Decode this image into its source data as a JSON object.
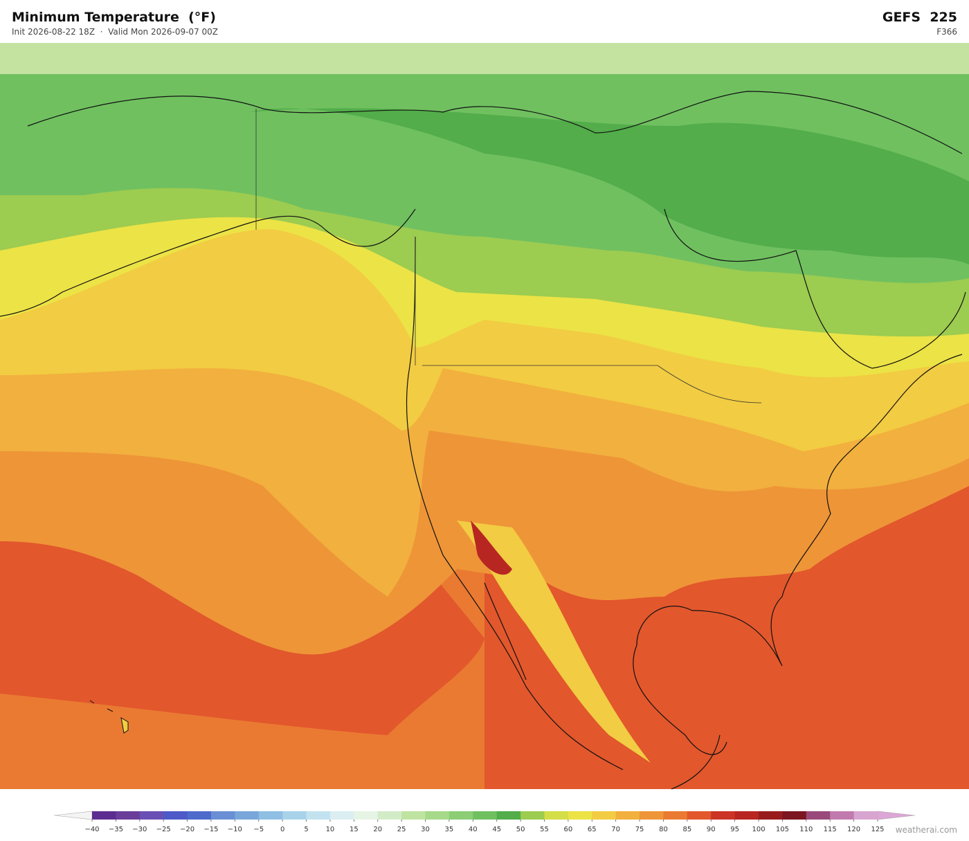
{
  "header": {
    "title": "Minimum Temperature  (°F)",
    "subtitle": "Init 2026-08-22 18Z  ·  Valid Mon 2026-09-07 00Z",
    "model": "GEFS  225",
    "forecast_hour": "F366"
  },
  "colorbar": {
    "ticks": [
      {
        "value": -40,
        "label": "−40"
      },
      {
        "value": -35,
        "label": "−35"
      },
      {
        "value": -30,
        "label": "−30"
      },
      {
        "value": -25,
        "label": "−25"
      },
      {
        "value": -20,
        "label": "−20"
      },
      {
        "value": -15,
        "label": "−15"
      },
      {
        "value": -10,
        "label": "−10"
      },
      {
        "value": -5,
        "label": "−5"
      },
      0,
      5,
      10,
      15,
      20,
      25,
      30,
      35,
      40,
      45,
      50,
      55,
      60,
      65,
      70,
      75,
      80,
      85,
      90,
      95,
      100,
      105,
      110,
      115,
      120,
      125
    ],
    "colors": [
      "#5c2d91",
      "#6a3d9a",
      "#6a4fb5",
      "#4e5ac8",
      "#4e6bcc",
      "#6b8fd4",
      "#7aa7d9",
      "#8fbfe3",
      "#a8d2ea",
      "#c3e2ef",
      "#dbeef2",
      "#e6f4e6",
      "#d3ecc8",
      "#bfe3a0",
      "#a6d98a",
      "#8cce76",
      "#70c060",
      "#52ad4a",
      "#9ccc50",
      "#d4de48",
      "#ece346",
      "#f2cc42",
      "#f2b03e",
      "#ee9538",
      "#ea7a32",
      "#e2572c",
      "#cc3426",
      "#b82622",
      "#981c1e",
      "#7c1620",
      "#9a4a7a",
      "#c07aae",
      "#d8a4d0"
    ],
    "under_color": "#f4f4f4",
    "over_color": "#dca6d6"
  },
  "watermark": "weatherai.com"
}
